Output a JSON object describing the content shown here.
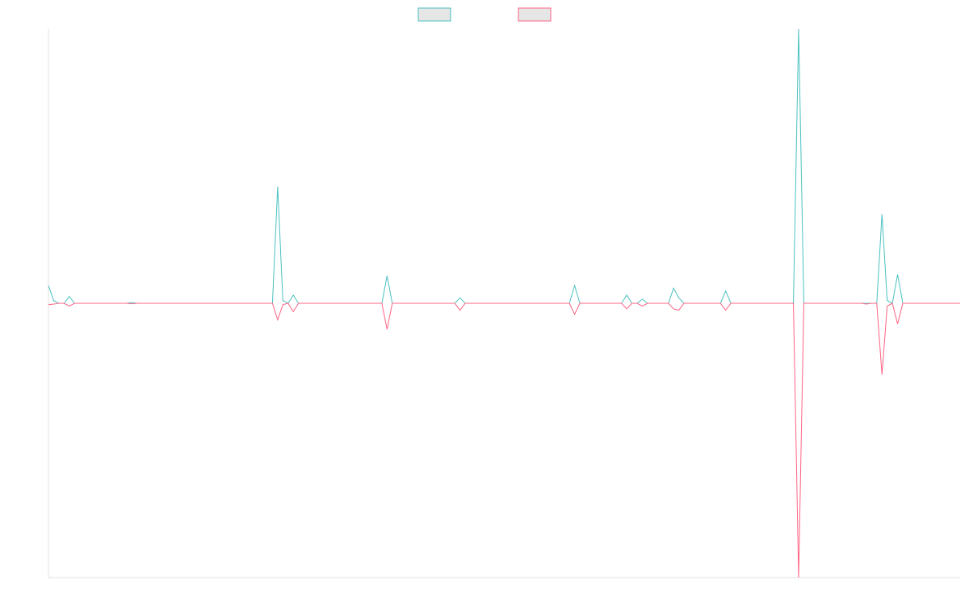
{
  "chart_data": {
    "type": "line",
    "title": "",
    "xlabel": "",
    "ylabel": "",
    "x": [
      0,
      1,
      2,
      3,
      4,
      5,
      6,
      7,
      8,
      9,
      10,
      11,
      12,
      13,
      14,
      15,
      16,
      17,
      18,
      19,
      20,
      21,
      22,
      23,
      24,
      25,
      26,
      27,
      28,
      29,
      30,
      31,
      32,
      33,
      34,
      35,
      36,
      37,
      38,
      39,
      40,
      41,
      42,
      43,
      44,
      45,
      46,
      47,
      48,
      49,
      50,
      51,
      52,
      53,
      54,
      55,
      56,
      57,
      58,
      59,
      60,
      61,
      62,
      63,
      64,
      65,
      66,
      67,
      68,
      69,
      70,
      71,
      72,
      73,
      74,
      75,
      76,
      77,
      78,
      79,
      80,
      81,
      82,
      83,
      84,
      85,
      86,
      87,
      88,
      89,
      90,
      91,
      92,
      93,
      94,
      95,
      96,
      97,
      98,
      99,
      100,
      101,
      102,
      103,
      104,
      105,
      106,
      107,
      108,
      109,
      110,
      111,
      112,
      113,
      114,
      115,
      116,
      117,
      118,
      119,
      120,
      121,
      122,
      123,
      124,
      125,
      126,
      127,
      128,
      129,
      130,
      131,
      132,
      133,
      134,
      135,
      136,
      137,
      138,
      139,
      140,
      141,
      142,
      143,
      144,
      145,
      146,
      147,
      148,
      149,
      150,
      151,
      152,
      153,
      154,
      155,
      156,
      157,
      158,
      159,
      160,
      161,
      162,
      163,
      164,
      165,
      166,
      167,
      168,
      169,
      170,
      171,
      172,
      173,
      174,
      175
    ],
    "xlim": [
      0,
      175
    ],
    "ylim": [
      -1,
      1
    ],
    "grid": false,
    "legend_position": "top-center",
    "series": [
      {
        "name": "",
        "color": "#4bc0c0",
        "fill": "#e6e6e6",
        "values": [
          0.065,
          0.01,
          0,
          0,
          0.025,
          0,
          0,
          0,
          0,
          0,
          0,
          0,
          0,
          0,
          0,
          0,
          0.003,
          0,
          0,
          0,
          0,
          0,
          0,
          0,
          0,
          0,
          0,
          0,
          0,
          0,
          0,
          0,
          0,
          0,
          0,
          0,
          0,
          0,
          0,
          0,
          0,
          0,
          0,
          0,
          0.425,
          0.01,
          0,
          0.03,
          0,
          0,
          0,
          0,
          0,
          0,
          0,
          0,
          0,
          0,
          0,
          0,
          0,
          0,
          0,
          0,
          0,
          0.1,
          0,
          0,
          0,
          0,
          0,
          0,
          0,
          0,
          0,
          0,
          0,
          0,
          0,
          0.02,
          0,
          0,
          0,
          0,
          0,
          0,
          0,
          0,
          0,
          0,
          0,
          0,
          0,
          0,
          0,
          0,
          0,
          0,
          0,
          0,
          0,
          0.065,
          0,
          0,
          0,
          0,
          0,
          0,
          0,
          0,
          0,
          0.03,
          0,
          0,
          0.015,
          0,
          0,
          0,
          0,
          0,
          0.055,
          0.02,
          0,
          0,
          0,
          0,
          0,
          0,
          0,
          0,
          0.045,
          0,
          0,
          0,
          0,
          0,
          0,
          0,
          0,
          0,
          0,
          0,
          0,
          0,
          1,
          0,
          0,
          0,
          0,
          0,
          0,
          0,
          0,
          0,
          0,
          0,
          0,
          0,
          0,
          0,
          0.325,
          0.01,
          0,
          0.105,
          0,
          0,
          0,
          0,
          0,
          0,
          0,
          0,
          0,
          0,
          0,
          0
        ]
      },
      {
        "name": "",
        "color": "#ff6384",
        "fill": "#e6e6e6",
        "values": [
          -0.005,
          -0.003,
          0,
          0,
          -0.01,
          0,
          0,
          0,
          0,
          0,
          0,
          0,
          0,
          0,
          0,
          0,
          -0.002,
          0,
          0,
          0,
          0,
          0,
          0,
          0,
          0,
          0,
          0,
          0,
          0,
          0,
          0,
          0,
          0,
          0,
          0,
          0,
          0,
          0,
          0,
          0,
          0,
          0,
          0,
          0,
          -0.06,
          -0.005,
          0,
          -0.03,
          0,
          0,
          0,
          0,
          0,
          0,
          0,
          0,
          0,
          0,
          0,
          0,
          0,
          0,
          0,
          0,
          0,
          -0.095,
          0,
          0,
          0,
          0,
          0,
          0,
          0,
          0,
          0,
          0,
          0,
          0,
          0,
          -0.025,
          0,
          0,
          0,
          0,
          0,
          0,
          0,
          0,
          0,
          0,
          0,
          0,
          0,
          0,
          0,
          0,
          0,
          0,
          0,
          0,
          0,
          -0.04,
          0,
          0,
          0,
          0,
          0,
          0,
          0,
          0,
          0,
          -0.02,
          0,
          0,
          -0.01,
          0,
          0,
          0,
          0,
          0,
          -0.02,
          -0.025,
          0,
          0,
          0,
          0,
          0,
          0,
          0,
          0,
          -0.025,
          0,
          0,
          0,
          0,
          0,
          0,
          0,
          0,
          0,
          0,
          0,
          0,
          0,
          -1,
          0,
          0,
          0,
          0,
          0,
          0,
          0,
          0,
          0,
          0,
          0,
          0,
          -0.003,
          0,
          0,
          -0.26,
          -0.01,
          0,
          -0.075,
          0,
          0,
          0,
          0,
          0,
          0,
          0,
          0,
          0,
          0,
          0,
          0
        ]
      }
    ]
  }
}
